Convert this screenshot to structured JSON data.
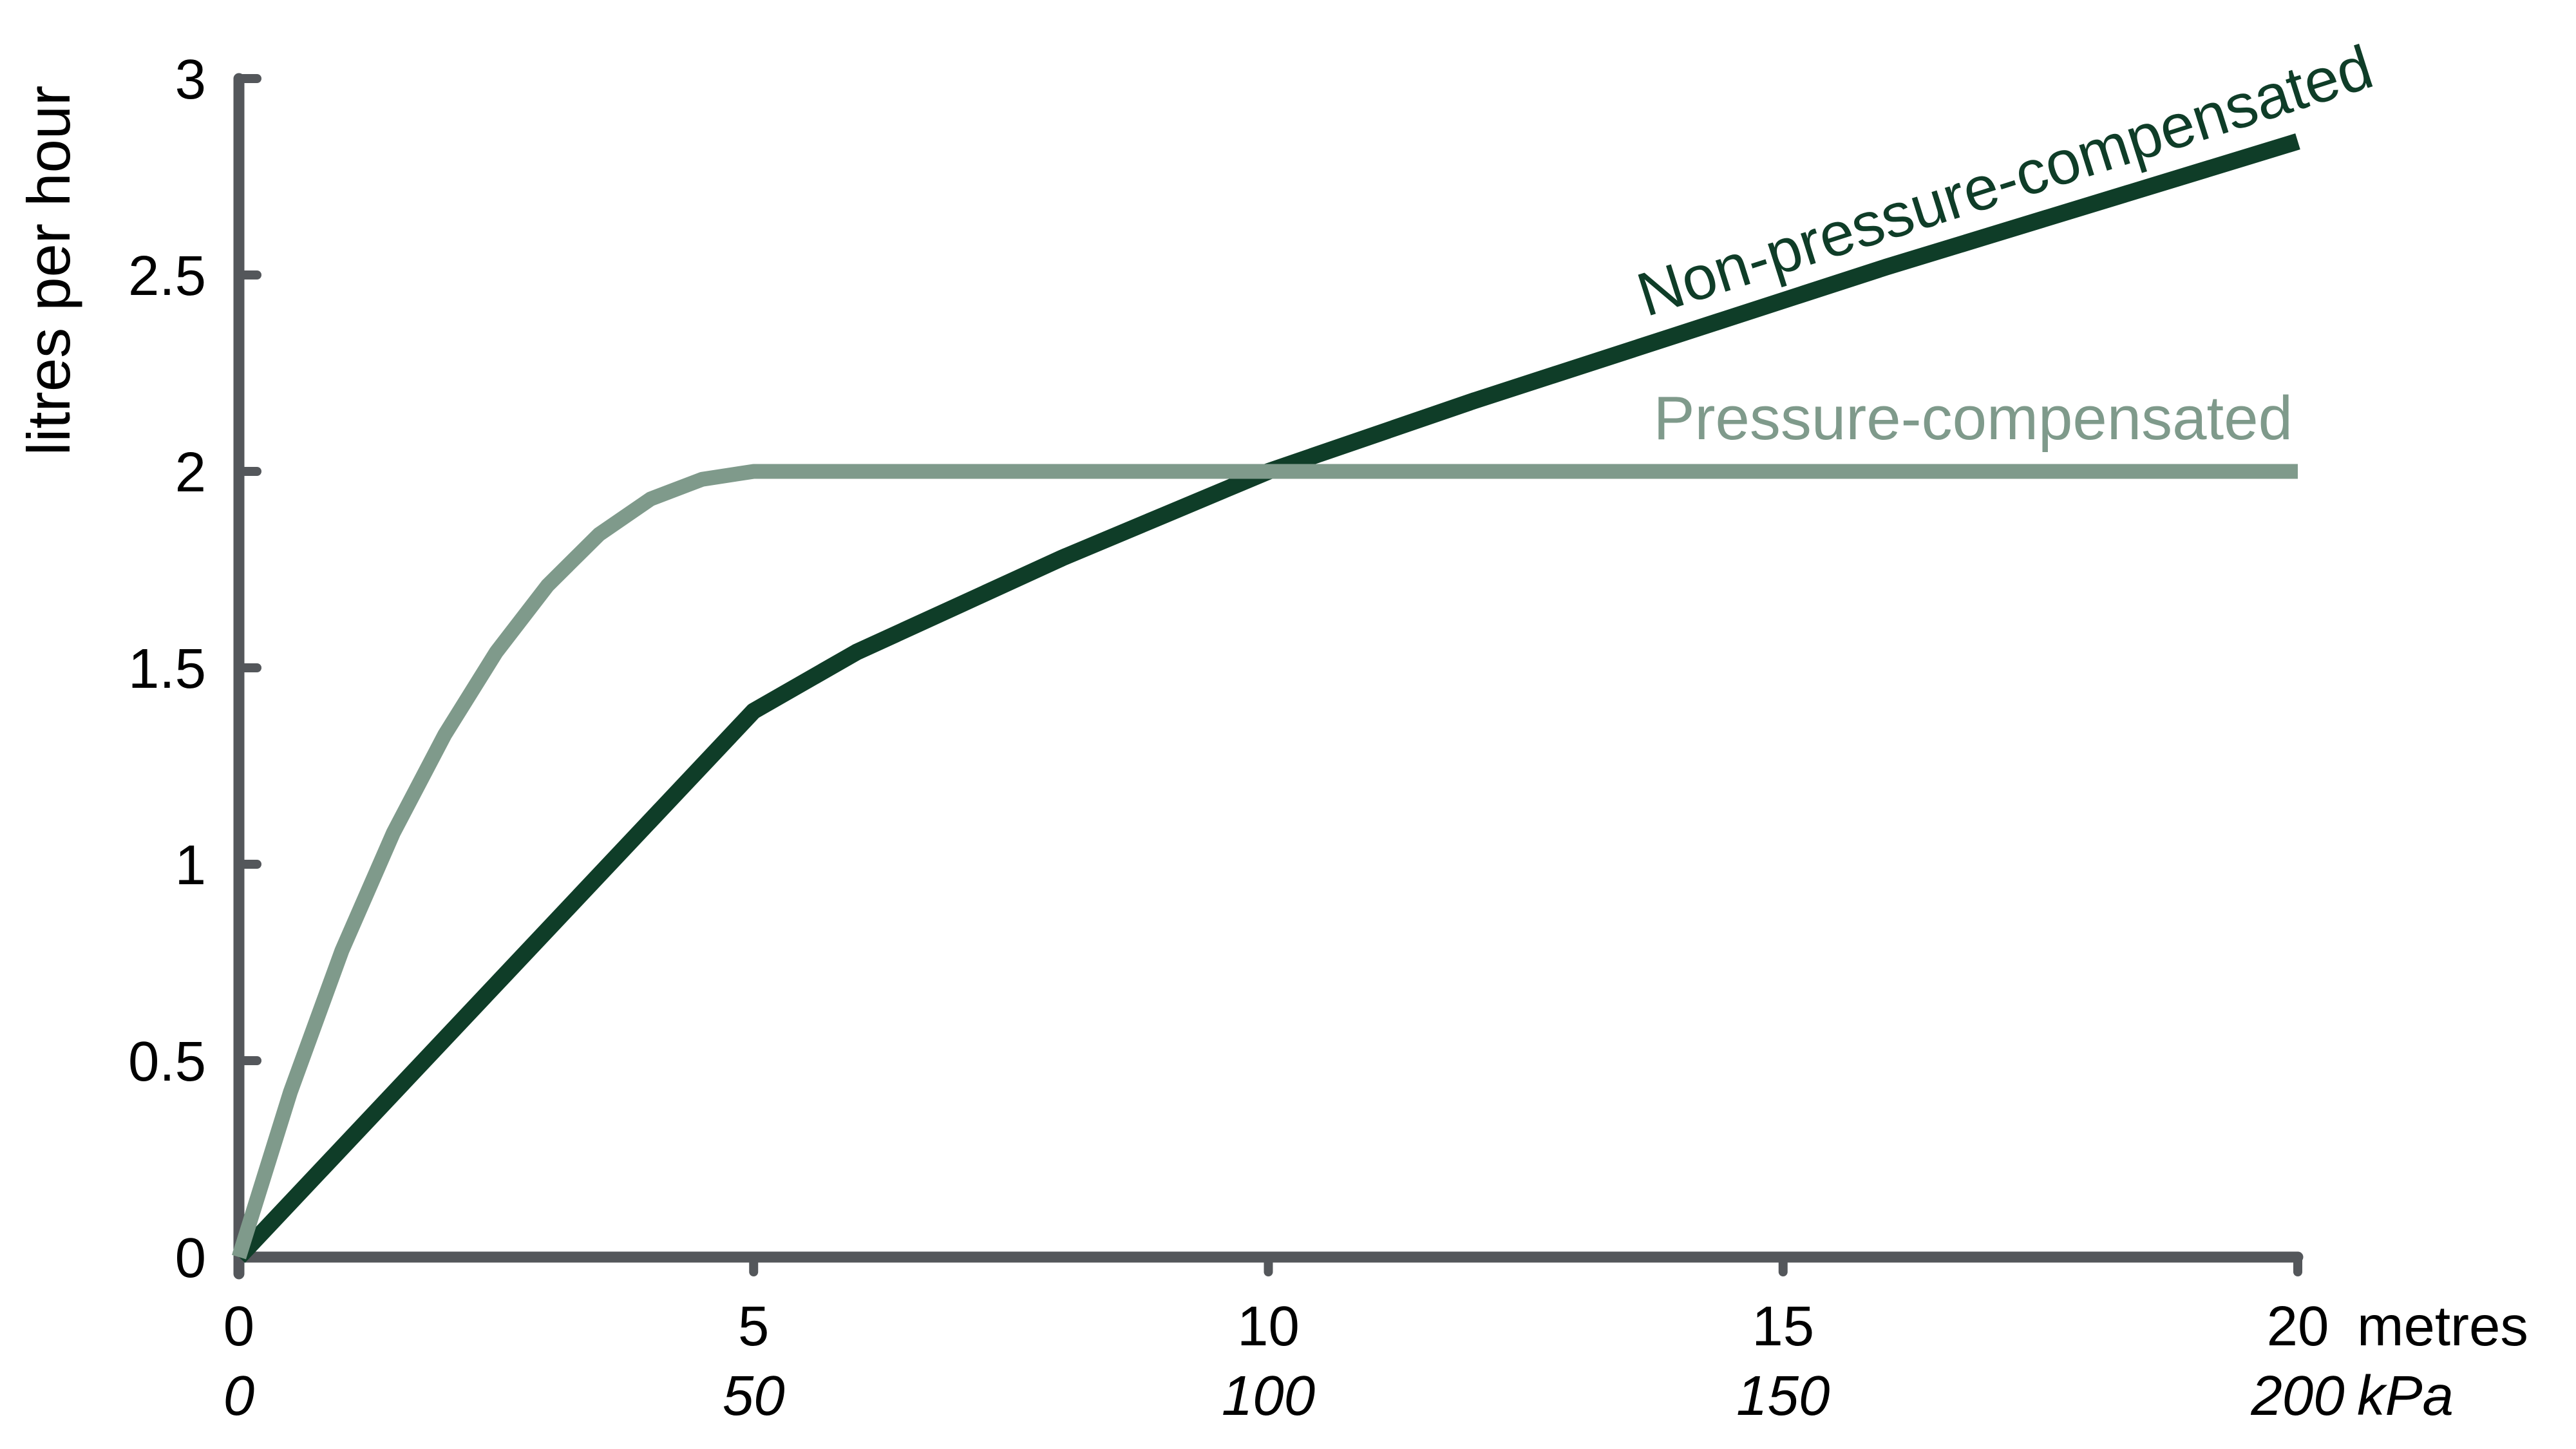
{
  "background": "#FFFFFF",
  "axis_color": "#54575B",
  "text_color": "#000000",
  "chart_data": {
    "type": "line",
    "title": "",
    "grid": false,
    "legend_position": "labels-on-chart",
    "y_axis": {
      "label": "litres per hour",
      "range": [
        0,
        3
      ],
      "ticks": [
        0,
        0.5,
        1,
        1.5,
        2,
        2.5,
        3
      ]
    },
    "x_axis": {
      "range": [
        0,
        20
      ],
      "primary": {
        "unit": "metres",
        "ticks": [
          0,
          5,
          10,
          15,
          20
        ]
      },
      "secondary": {
        "unit": "kPa",
        "ticks": [
          0,
          50,
          100,
          150,
          200
        ],
        "style": "italic"
      }
    },
    "series": [
      {
        "name": "Non-pressure-compensated",
        "color": "#0F3D28",
        "stroke_width": 26,
        "points": [
          [
            0,
            0
          ],
          [
            5,
            1.39
          ],
          [
            6,
            1.54
          ],
          [
            7,
            1.66
          ],
          [
            8,
            1.78
          ],
          [
            9,
            1.89
          ],
          [
            10,
            2.0
          ],
          [
            12,
            2.18
          ],
          [
            14,
            2.35
          ],
          [
            16,
            2.52
          ],
          [
            18,
            2.68
          ],
          [
            20,
            2.84
          ]
        ]
      },
      {
        "name": "Pressure-compensated",
        "color": "#7F9A8B",
        "stroke_width": 23,
        "points": [
          [
            0,
            0
          ],
          [
            0.5,
            0.42
          ],
          [
            1,
            0.78
          ],
          [
            1.5,
            1.08
          ],
          [
            2,
            1.33
          ],
          [
            2.5,
            1.54
          ],
          [
            3,
            1.71
          ],
          [
            3.5,
            1.84
          ],
          [
            4,
            1.93
          ],
          [
            4.5,
            1.98
          ],
          [
            5,
            2.0
          ],
          [
            20,
            2.0
          ]
        ]
      }
    ]
  }
}
